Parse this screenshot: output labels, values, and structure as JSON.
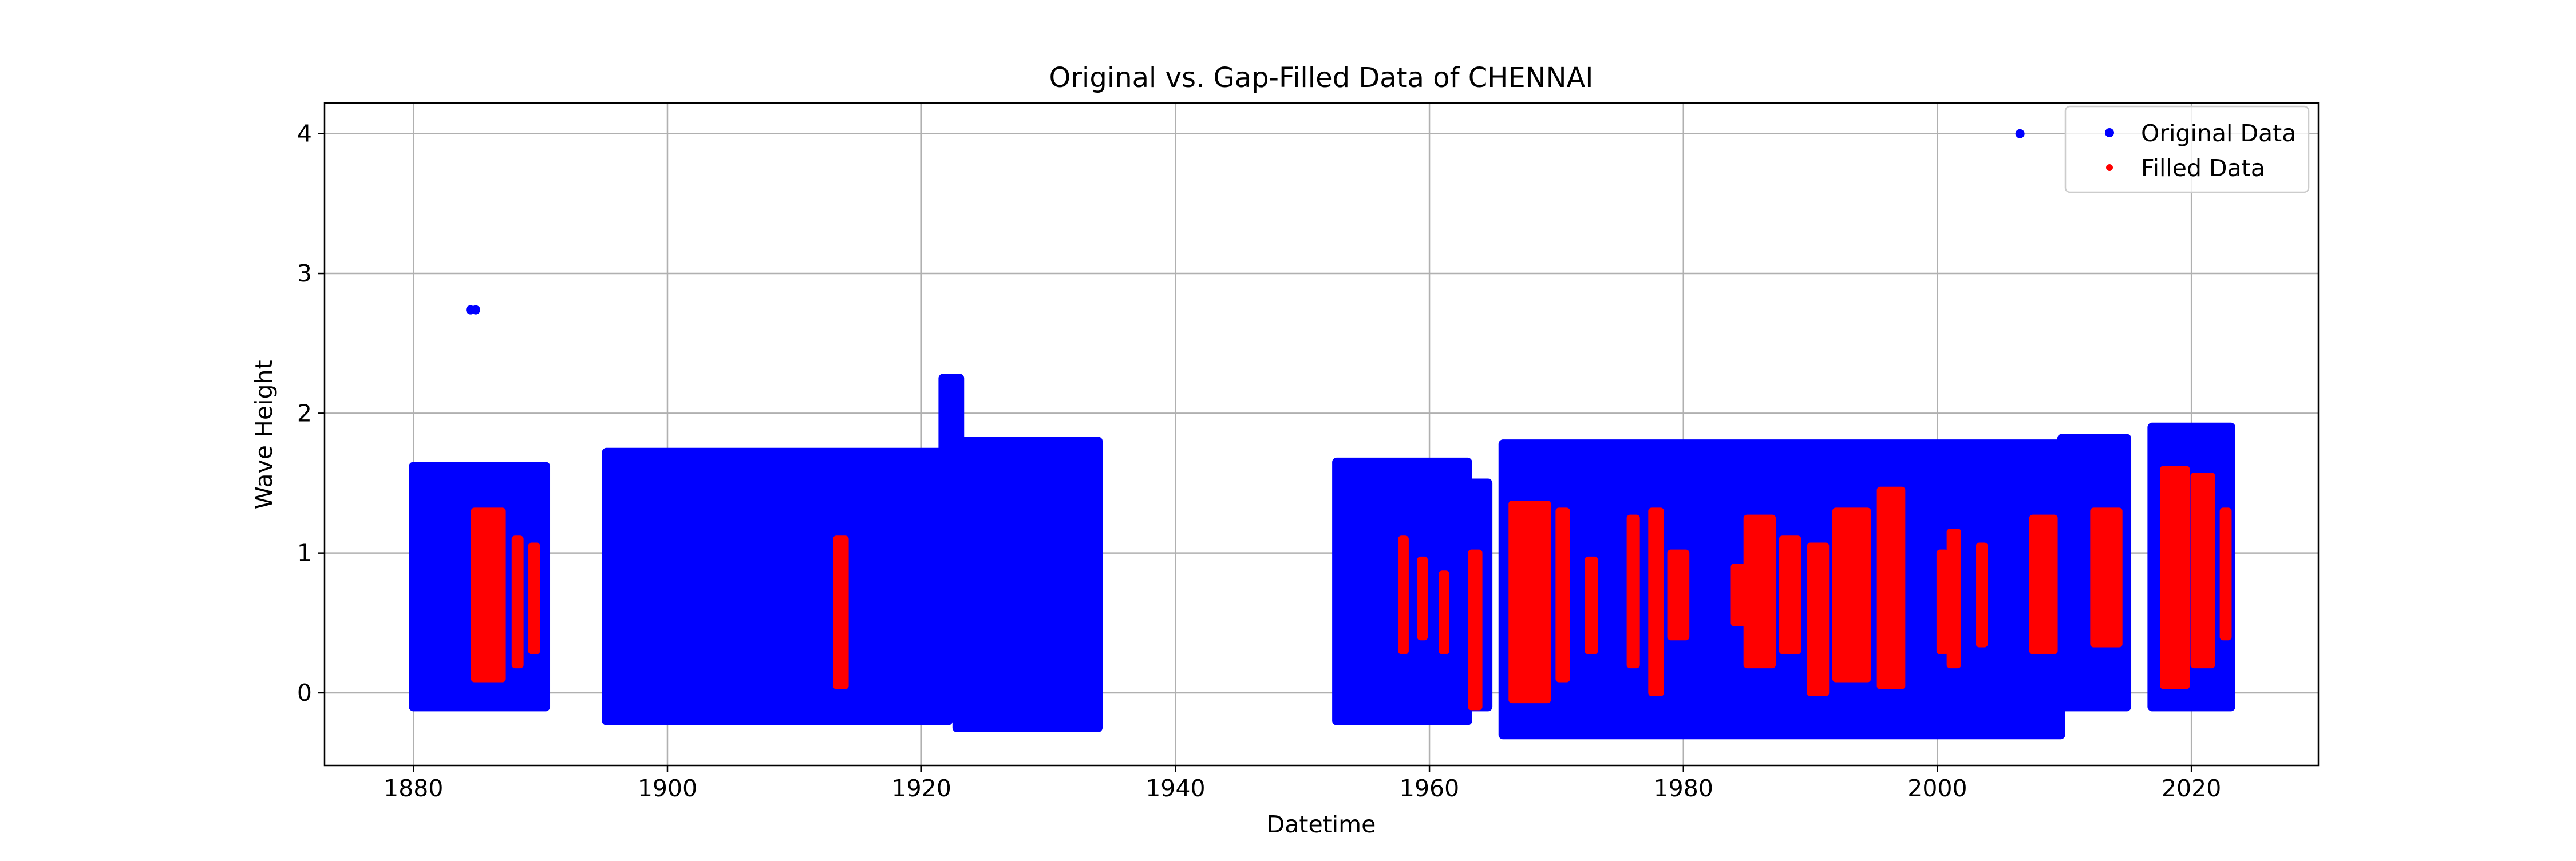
{
  "chart_data": {
    "type": "scatter",
    "title": "Original vs. Gap-Filled Data of CHENNAI",
    "xlabel": "Datetime",
    "ylabel": "Wave Height",
    "xlim": [
      1873.0,
      2030.0
    ],
    "ylim": [
      -0.52,
      4.22
    ],
    "grid": true,
    "legend_placement": "top-right",
    "x_ticks": [
      "1880",
      "1900",
      "1920",
      "1940",
      "1960",
      "1980",
      "2000",
      "2020"
    ],
    "y_ticks": [
      "0",
      "1",
      "2",
      "3",
      "4"
    ],
    "series": [
      {
        "name": "Original Data",
        "color": "#0000ff",
        "segments": [
          {
            "x": [
              1880.0,
              1890.4
            ],
            "y": [
              -0.1,
              1.62
            ]
          },
          {
            "x": [
              1895.2,
              1922.1
            ],
            "y": [
              -0.2,
              1.72
            ]
          },
          {
            "x": [
              1921.7,
              1923.0
            ],
            "y": [
              0.5,
              2.25
            ]
          },
          {
            "x": [
              1922.8,
              1933.9
            ],
            "y": [
              -0.25,
              1.8
            ]
          },
          {
            "x": [
              1952.7,
              1963.0
            ],
            "y": [
              -0.2,
              1.65
            ]
          },
          {
            "x": [
              1962.8,
              1964.6
            ],
            "y": [
              -0.1,
              1.5
            ]
          },
          {
            "x": [
              1965.8,
              2009.7
            ],
            "y": [
              -0.3,
              1.78
            ]
          },
          {
            "x": [
              2009.8,
              2014.9
            ],
            "y": [
              -0.1,
              1.82
            ]
          },
          {
            "x": [
              2016.9,
              2023.1
            ],
            "y": [
              -0.1,
              1.9
            ]
          }
        ],
        "points": [
          {
            "x": 1884.5,
            "y": 2.74
          },
          {
            "x": 1884.9,
            "y": 2.74
          },
          {
            "x": 2006.5,
            "y": 4.0
          }
        ]
      },
      {
        "name": "Filled Data",
        "color": "#ff0000",
        "segments": [
          {
            "x": [
              1884.8,
              1887.0
            ],
            "y": [
              0.1,
              1.3
            ]
          },
          {
            "x": [
              1888.0,
              1888.4
            ],
            "y": [
              0.2,
              1.1
            ]
          },
          {
            "x": [
              1889.3,
              1889.7
            ],
            "y": [
              0.3,
              1.05
            ]
          },
          {
            "x": [
              1913.3,
              1914.0
            ],
            "y": [
              0.05,
              1.1
            ]
          },
          {
            "x": [
              1957.8,
              1958.1
            ],
            "y": [
              0.3,
              1.1
            ]
          },
          {
            "x": [
              1959.3,
              1959.6
            ],
            "y": [
              0.4,
              0.95
            ]
          },
          {
            "x": [
              1961.0,
              1961.3
            ],
            "y": [
              0.3,
              0.85
            ]
          },
          {
            "x": [
              1963.3,
              1963.9
            ],
            "y": [
              -0.1,
              1.0
            ]
          },
          {
            "x": [
              1966.5,
              1969.3
            ],
            "y": [
              -0.05,
              1.35
            ]
          },
          {
            "x": [
              1970.2,
              1970.8
            ],
            "y": [
              0.1,
              1.3
            ]
          },
          {
            "x": [
              1972.5,
              1973.0
            ],
            "y": [
              0.3,
              0.95
            ]
          },
          {
            "x": [
              1975.8,
              1976.3
            ],
            "y": [
              0.2,
              1.25
            ]
          },
          {
            "x": [
              1977.5,
              1978.2
            ],
            "y": [
              0.0,
              1.3
            ]
          },
          {
            "x": [
              1979.0,
              1980.2
            ],
            "y": [
              0.4,
              1.0
            ]
          },
          {
            "x": [
              1984.0,
              1984.6
            ],
            "y": [
              0.5,
              0.9
            ]
          },
          {
            "x": [
              1985.0,
              1987.0
            ],
            "y": [
              0.2,
              1.25
            ]
          },
          {
            "x": [
              1987.8,
              1989.0
            ],
            "y": [
              0.3,
              1.1
            ]
          },
          {
            "x": [
              1990.0,
              1991.2
            ],
            "y": [
              0.0,
              1.05
            ]
          },
          {
            "x": [
              1992.0,
              1994.5
            ],
            "y": [
              0.1,
              1.3
            ]
          },
          {
            "x": [
              1995.5,
              1997.2
            ],
            "y": [
              0.05,
              1.45
            ]
          },
          {
            "x": [
              2000.2,
              2000.6
            ],
            "y": [
              0.3,
              1.0
            ]
          },
          {
            "x": [
              2001.0,
              2001.6
            ],
            "y": [
              0.2,
              1.15
            ]
          },
          {
            "x": [
              2003.3,
              2003.7
            ],
            "y": [
              0.35,
              1.05
            ]
          },
          {
            "x": [
              2007.5,
              2009.2
            ],
            "y": [
              0.3,
              1.25
            ]
          },
          {
            "x": [
              2012.3,
              2014.3
            ],
            "y": [
              0.35,
              1.3
            ]
          },
          {
            "x": [
              2017.8,
              2019.6
            ],
            "y": [
              0.05,
              1.6
            ]
          },
          {
            "x": [
              2020.2,
              2021.6
            ],
            "y": [
              0.2,
              1.55
            ]
          },
          {
            "x": [
              2022.5,
              2022.9
            ],
            "y": [
              0.4,
              1.3
            ]
          }
        ],
        "points": []
      }
    ]
  }
}
